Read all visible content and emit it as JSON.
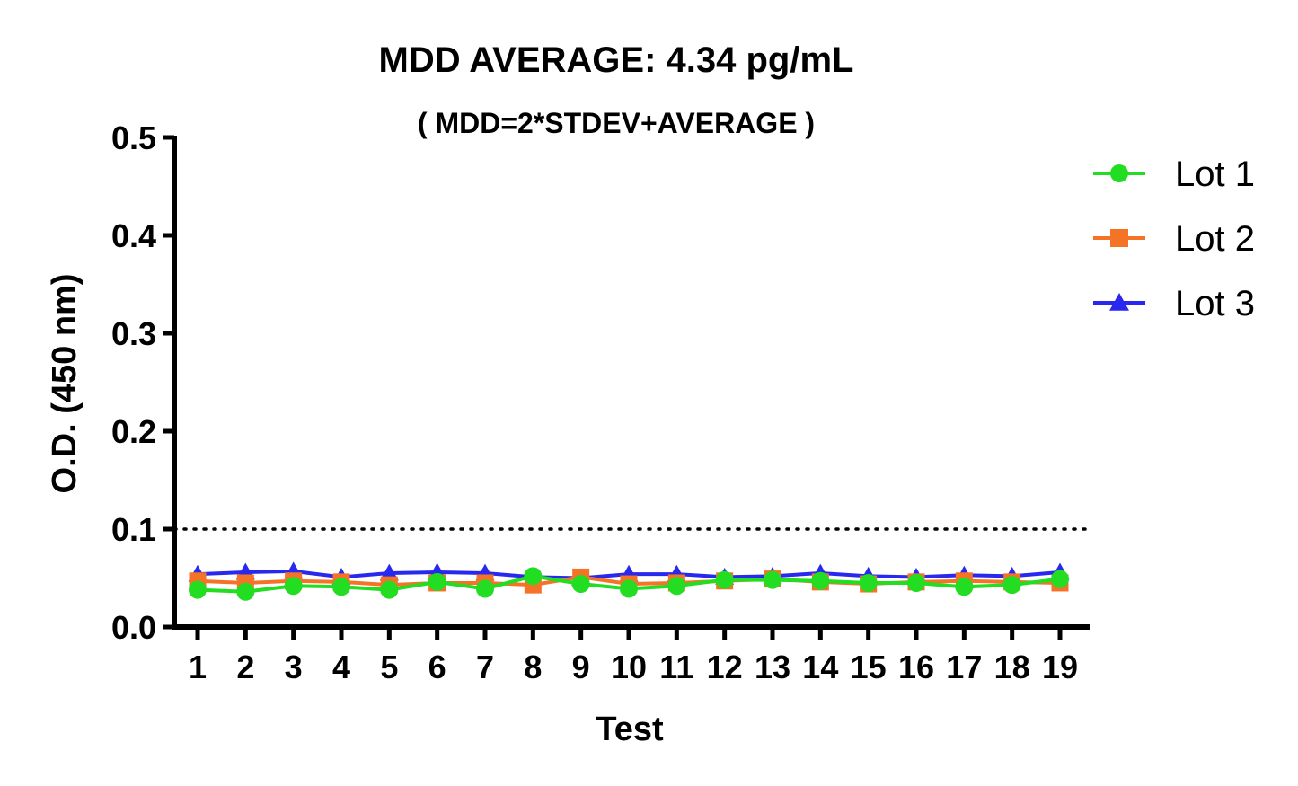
{
  "chart_data": {
    "type": "line",
    "title": "MDD AVERAGE:  4.34 pg/mL",
    "subtitle": "( MDD=2*STDEV+AVERAGE )",
    "xlabel": "Test",
    "ylabel": "O.D. (450 nm)",
    "x": [
      "1",
      "2",
      "3",
      "4",
      "5",
      "6",
      "7",
      "8",
      "9",
      "10",
      "11",
      "12",
      "13",
      "14",
      "15",
      "16",
      "17",
      "18",
      "19"
    ],
    "ylim": [
      0,
      0.5
    ],
    "yticks": [
      "0.0",
      "0.1",
      "0.2",
      "0.3",
      "0.4",
      "0.5"
    ],
    "reference_line": {
      "y": 0.1,
      "style": "dotted"
    },
    "legend_position": "top-right",
    "grid": false,
    "series": [
      {
        "name": "Lot 1",
        "marker": "circle",
        "color": "#22dd22",
        "values": [
          0.038,
          0.036,
          0.042,
          0.041,
          0.038,
          0.046,
          0.039,
          0.052,
          0.044,
          0.039,
          0.042,
          0.048,
          0.048,
          0.047,
          0.045,
          0.045,
          0.041,
          0.043,
          0.049
        ]
      },
      {
        "name": "Lot 2",
        "marker": "square",
        "color": "#f57326",
        "values": [
          0.047,
          0.045,
          0.047,
          0.046,
          0.043,
          0.045,
          0.045,
          0.043,
          0.051,
          0.044,
          0.045,
          0.047,
          0.049,
          0.046,
          0.044,
          0.046,
          0.047,
          0.046,
          0.045
        ]
      },
      {
        "name": "Lot 3",
        "marker": "triangle",
        "color": "#2828ee",
        "values": [
          0.054,
          0.056,
          0.057,
          0.051,
          0.055,
          0.056,
          0.055,
          0.051,
          0.05,
          0.054,
          0.054,
          0.051,
          0.052,
          0.055,
          0.052,
          0.051,
          0.053,
          0.052,
          0.056
        ]
      }
    ]
  }
}
